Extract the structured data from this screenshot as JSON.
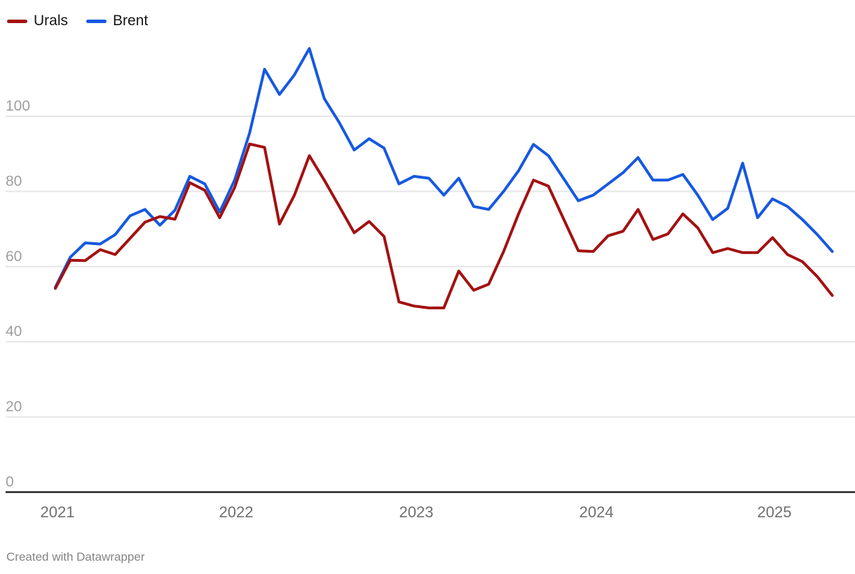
{
  "legend": {
    "items": [
      {
        "label": "Urals",
        "color": "#a31111"
      },
      {
        "label": "Brent",
        "color": "#1658e0"
      }
    ]
  },
  "footer": {
    "text": "Created with Datawrapper"
  },
  "colors": {
    "urals_line": "#a31111",
    "brent_line": "#1658e0",
    "gridline": "#e6e6e6",
    "zero_axis": "#222222",
    "y_tick_text": "#9e9e9e",
    "x_tick_text": "#6f6f6f",
    "background": "#ffffff"
  },
  "chart_data": {
    "type": "line",
    "title": "",
    "xlabel": "",
    "ylabel": "",
    "grid": true,
    "legend_position": "top-left",
    "x_unit": "month",
    "ylim": [
      0,
      123
    ],
    "y_ticks": [
      0,
      20,
      40,
      60,
      80,
      100
    ],
    "x_ticks": [
      "2021",
      "2022",
      "2023",
      "2024",
      "2025"
    ],
    "x": [
      "2021-01",
      "2021-02",
      "2021-03",
      "2021-04",
      "2021-05",
      "2021-06",
      "2021-07",
      "2021-08",
      "2021-09",
      "2021-10",
      "2021-11",
      "2021-12",
      "2022-01",
      "2022-02",
      "2022-03",
      "2022-04",
      "2022-05",
      "2022-06",
      "2022-07",
      "2022-08",
      "2022-09",
      "2022-10",
      "2022-11",
      "2022-12",
      "2023-01",
      "2023-02",
      "2023-03",
      "2023-04",
      "2023-05",
      "2023-06",
      "2023-07",
      "2023-08",
      "2023-09",
      "2023-10",
      "2023-11",
      "2023-12",
      "2024-01",
      "2024-02",
      "2024-03",
      "2024-04",
      "2024-05",
      "2024-06",
      "2024-07",
      "2024-08",
      "2024-09",
      "2024-10",
      "2024-11",
      "2024-12",
      "2025-01",
      "2025-02",
      "2025-03",
      "2025-04",
      "2025-05"
    ],
    "series": [
      {
        "name": "Urals",
        "color": "#a31111",
        "values": [
          54.2,
          61.7,
          61.6,
          64.5,
          63.2,
          67.5,
          71.8,
          73.3,
          72.6,
          82.3,
          80.3,
          73.0,
          81.0,
          92.6,
          91.7,
          71.3,
          79.0,
          89.5,
          83.0,
          76.0,
          69.0,
          72.0,
          68.0,
          50.6,
          49.5,
          49.0,
          49.0,
          58.8,
          53.7,
          55.3,
          64.0,
          74.0,
          83.0,
          81.4,
          72.8,
          64.2,
          64.0,
          68.2,
          69.4,
          75.2,
          67.2,
          68.7,
          74.0,
          70.3,
          63.7,
          64.8,
          63.7,
          63.7,
          67.7,
          63.2,
          61.3,
          57.3,
          52.3
        ]
      },
      {
        "name": "Brent",
        "color": "#1658e0",
        "values": [
          54.5,
          62.5,
          66.3,
          66.0,
          68.5,
          73.5,
          75.2,
          71.0,
          75.0,
          84.0,
          82.0,
          74.5,
          83.0,
          95.5,
          112.5,
          105.8,
          111.0,
          118.0,
          104.7,
          98.3,
          91.0,
          94.0,
          91.5,
          82.0,
          84.0,
          83.5,
          79.0,
          83.5,
          76.0,
          75.2,
          80.0,
          85.5,
          92.5,
          89.5,
          83.5,
          77.5,
          79.0,
          82.0,
          85.0,
          89.0,
          83.0,
          83.0,
          84.5,
          79.0,
          72.5,
          75.5,
          87.5,
          73.0,
          78.0,
          76.0,
          72.5,
          68.5,
          64.0
        ]
      }
    ]
  }
}
